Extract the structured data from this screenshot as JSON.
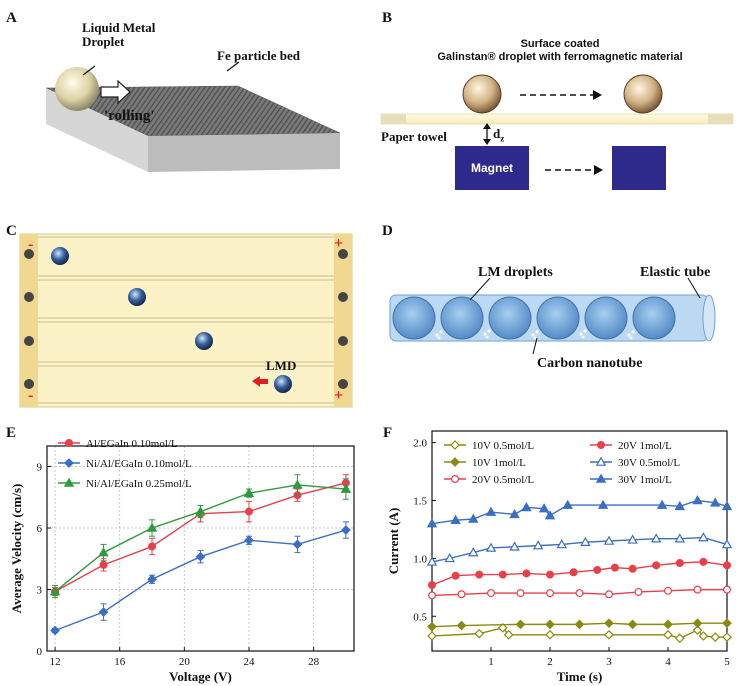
{
  "panels": {
    "A": {
      "letter": "A",
      "droplet_label": "Liquid Metal\nDroplet",
      "bed_label": "Fe particle bed",
      "rolling_label": "'rolling'"
    },
    "B": {
      "letter": "B",
      "coated_label": "Surface coated\nGalinstan® droplet with ferromagnetic material",
      "paper_label": "Paper towel",
      "gap_label": "d",
      "gap_sub": "z",
      "magnet_label": "Magnet"
    },
    "C": {
      "letter": "C",
      "lmd_label": "LMD",
      "minus": "-",
      "plus": "+"
    },
    "D": {
      "letter": "D",
      "droplets_label": "LM droplets",
      "tube_label": "Elastic tube",
      "cnt_label": "Carbon nanotube"
    },
    "E": {
      "letter": "E"
    },
    "F": {
      "letter": "F"
    }
  },
  "colors": {
    "red": "#e8404a",
    "blue": "#3b6fc4",
    "green": "#2e9a3e",
    "olive": "#8a8a10",
    "magnet": "#2e2a8c",
    "tube": "#8fbde6",
    "strip": "#fbf2c8"
  },
  "chart_data": [
    {
      "id": "E",
      "type": "line",
      "title": "",
      "xlabel": "Voltage (V)",
      "ylabel": "Average Velocity (cm/s)",
      "xlim": [
        11.5,
        30.5
      ],
      "ylim": [
        0,
        10
      ],
      "xticks": [
        12,
        16,
        20,
        24,
        28
      ],
      "yticks": [
        0,
        3,
        6,
        9
      ],
      "grid": true,
      "legend_position": "top-left",
      "x": [
        12,
        15,
        18,
        21,
        24,
        27,
        30
      ],
      "series": [
        {
          "name": "Al/EGaIn 0.10mol/L",
          "color": "#e8404a",
          "marker": "circle",
          "values": [
            2.9,
            4.2,
            5.1,
            6.7,
            6.8,
            7.6,
            8.2
          ],
          "errors": [
            0.2,
            0.3,
            0.4,
            0.4,
            0.5,
            0.3,
            0.4
          ]
        },
        {
          "name": "Ni/Al/EGaIn 0.10mol/L",
          "color": "#3b6fc4",
          "marker": "diamond",
          "values": [
            1.0,
            1.9,
            3.5,
            4.6,
            5.4,
            5.2,
            5.9
          ],
          "errors": [
            0.1,
            0.4,
            0.2,
            0.3,
            0.2,
            0.4,
            0.4
          ]
        },
        {
          "name": "Ni/Al/EGaIn 0.25mol/L",
          "color": "#2e9a3e",
          "marker": "triangle",
          "values": [
            2.9,
            4.8,
            6.0,
            6.8,
            7.7,
            8.1,
            7.9
          ],
          "errors": [
            0.3,
            0.4,
            0.4,
            0.3,
            0.2,
            0.5,
            0.5
          ]
        }
      ]
    },
    {
      "id": "F",
      "type": "line",
      "title": "",
      "xlabel": "Time (s)",
      "ylabel": "Current (A)",
      "xlim": [
        0,
        5
      ],
      "ylim": [
        0.2,
        2.1
      ],
      "xticks": [
        1,
        2,
        3,
        4,
        5
      ],
      "yticks": [
        0.5,
        1.0,
        1.5,
        2.0
      ],
      "grid": false,
      "legend_position": "top",
      "series": [
        {
          "name": "10V 0.5mol/L",
          "color": "#8a8a10",
          "marker": "diamond",
          "filled": false,
          "x": [
            0,
            0.8,
            1.2,
            1.3,
            2.0,
            3.0,
            4.0,
            4.2,
            4.5,
            4.6,
            4.8,
            5.0
          ],
          "values": [
            0.33,
            0.35,
            0.4,
            0.34,
            0.34,
            0.34,
            0.34,
            0.31,
            0.38,
            0.33,
            0.32,
            0.32
          ]
        },
        {
          "name": "10V 1mol/L",
          "color": "#8a8a10",
          "marker": "diamond",
          "filled": true,
          "x": [
            0,
            0.5,
            1.5,
            2.0,
            2.5,
            3.0,
            3.4,
            4.0,
            4.5,
            5.0
          ],
          "values": [
            0.41,
            0.42,
            0.43,
            0.43,
            0.43,
            0.44,
            0.43,
            0.43,
            0.44,
            0.44
          ]
        },
        {
          "name": "20V 0.5mol/L",
          "color": "#e8404a",
          "marker": "circle",
          "filled": false,
          "x": [
            0,
            0.5,
            1.0,
            1.5,
            2.0,
            2.5,
            3.0,
            3.5,
            4.0,
            4.5,
            5.0
          ],
          "values": [
            0.68,
            0.69,
            0.7,
            0.7,
            0.7,
            0.7,
            0.69,
            0.71,
            0.72,
            0.73,
            0.73
          ]
        },
        {
          "name": "20V 1mol/L",
          "color": "#e8404a",
          "marker": "circle",
          "filled": true,
          "x": [
            0,
            0.4,
            0.8,
            1.2,
            1.6,
            2.0,
            2.4,
            2.8,
            3.1,
            3.4,
            3.8,
            4.2,
            4.6,
            5.0
          ],
          "values": [
            0.77,
            0.85,
            0.86,
            0.86,
            0.87,
            0.86,
            0.88,
            0.9,
            0.92,
            0.91,
            0.94,
            0.96,
            0.97,
            0.94
          ]
        },
        {
          "name": "30V 0.5mol/L",
          "color": "#3b6fc4",
          "marker": "triangle",
          "filled": false,
          "x": [
            0,
            0.3,
            0.7,
            1.0,
            1.4,
            1.8,
            2.2,
            2.6,
            3.0,
            3.4,
            3.8,
            4.2,
            4.6,
            5.0
          ],
          "values": [
            0.97,
            1.0,
            1.05,
            1.09,
            1.1,
            1.11,
            1.12,
            1.14,
            1.15,
            1.16,
            1.17,
            1.17,
            1.18,
            1.12
          ]
        },
        {
          "name": "30V 1mol/L",
          "color": "#3b6fc4",
          "marker": "triangle",
          "filled": true,
          "x": [
            0,
            0.4,
            0.7,
            1.0,
            1.4,
            1.6,
            1.9,
            2.0,
            2.3,
            2.9,
            3.9,
            4.2,
            4.5,
            4.8,
            5.0
          ],
          "values": [
            1.3,
            1.33,
            1.34,
            1.4,
            1.38,
            1.44,
            1.43,
            1.37,
            1.46,
            1.46,
            1.46,
            1.45,
            1.5,
            1.48,
            1.45
          ]
        }
      ]
    }
  ]
}
